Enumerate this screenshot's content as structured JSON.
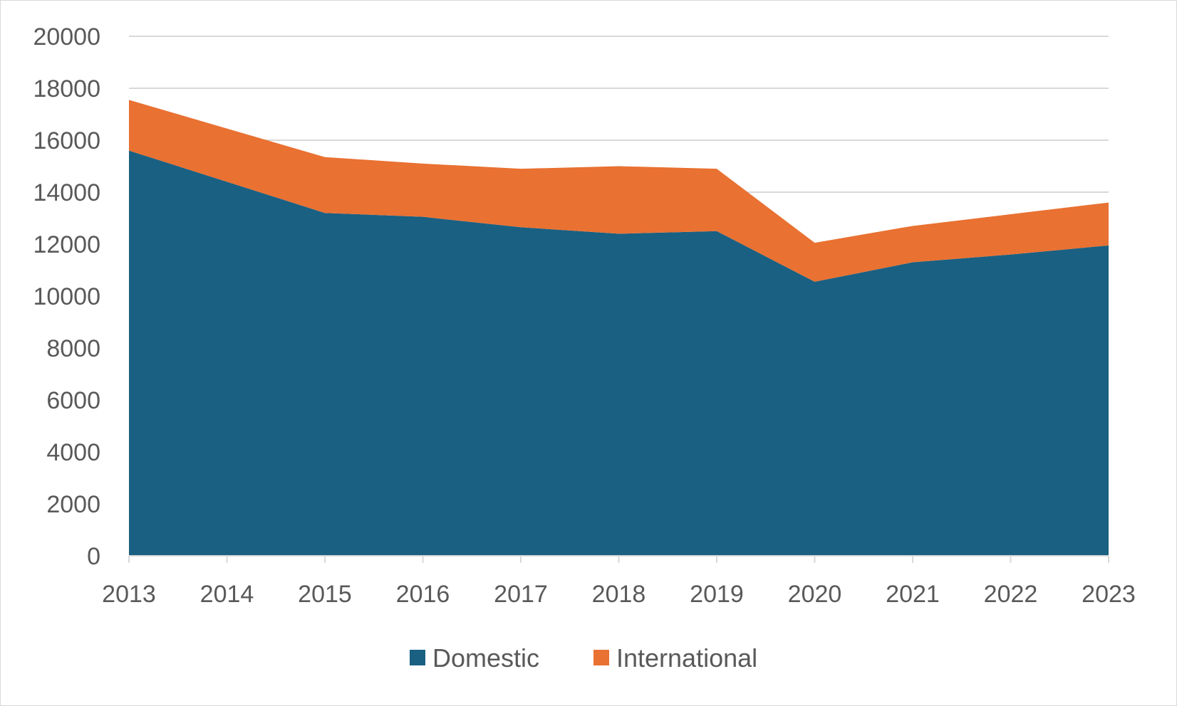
{
  "chart_data": {
    "type": "area",
    "stacked": true,
    "title": "",
    "xlabel": "",
    "ylabel": "",
    "x": [
      "2013",
      "2014",
      "2015",
      "2016",
      "2017",
      "2018",
      "2019",
      "2020",
      "2021",
      "2022",
      "2023"
    ],
    "ylim": [
      0,
      20000
    ],
    "yticks": [
      "0",
      "2000",
      "4000",
      "6000",
      "8000",
      "10000",
      "12000",
      "14000",
      "16000",
      "18000",
      "20000"
    ],
    "grid": true,
    "legend_position": "bottom",
    "series": [
      {
        "name": "Domestic",
        "color": "#1a6082",
        "values": [
          15600,
          14400,
          13200,
          13050,
          12650,
          12400,
          12500,
          10550,
          11300,
          11600,
          11950
        ]
      },
      {
        "name": "International",
        "color": "#e97132",
        "values": [
          1950,
          2050,
          2150,
          2050,
          2250,
          2600,
          2400,
          1500,
          1400,
          1550,
          1650
        ]
      }
    ]
  }
}
